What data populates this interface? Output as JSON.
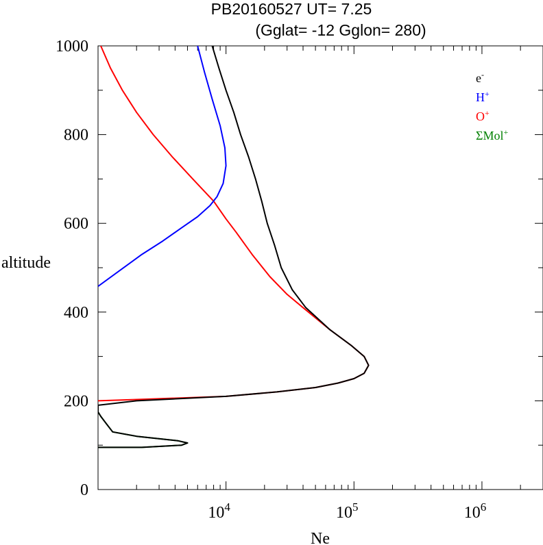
{
  "title": {
    "line1": "PB20160527   UT=  7.25",
    "line2": "(Gglat= -12   Gglon=  280)"
  },
  "chart_data": {
    "type": "line",
    "xlabel": "Ne",
    "ylabel": "altitude",
    "xscale": "log",
    "xlim": [
      1000,
      3000000
    ],
    "ylim": [
      0,
      1000
    ],
    "x_tick_labels": [
      {
        "base": "10",
        "exp": "4"
      },
      {
        "base": "10",
        "exp": "5"
      },
      {
        "base": "10",
        "exp": "6"
      }
    ],
    "y_tick_labels": [
      "0",
      "200",
      "400",
      "600",
      "800",
      "1000"
    ],
    "legend": {
      "placement": "top-right",
      "entries": [
        {
          "base": "e",
          "sup": "-",
          "color": "#000000"
        },
        {
          "base": "H",
          "sup": "+",
          "color": "#0000ff"
        },
        {
          "base": "O",
          "sup": "+",
          "color": "#ff0000"
        },
        {
          "base": "ΣMol",
          "sup": "+",
          "color": "#008000"
        }
      ]
    },
    "series": [
      {
        "name": "ΣMol+",
        "color": "#008000",
        "points": [
          [
            1000,
            95
          ],
          [
            2200,
            95
          ],
          [
            4500,
            100
          ],
          [
            5000,
            105
          ],
          [
            4200,
            110
          ],
          [
            2000,
            120
          ],
          [
            1300,
            130
          ],
          [
            1150,
            150
          ],
          [
            1050,
            165
          ],
          [
            1000,
            175
          ]
        ]
      },
      {
        "name": "O+",
        "color": "#ff0000",
        "points": [
          [
            1000,
            200
          ],
          [
            2000,
            203
          ],
          [
            10000,
            210
          ],
          [
            25000,
            220
          ],
          [
            50000,
            230
          ],
          [
            75000,
            240
          ],
          [
            100000,
            250
          ],
          [
            120000,
            262
          ],
          [
            130000,
            280
          ],
          [
            120000,
            300
          ],
          [
            95000,
            325
          ],
          [
            65000,
            360
          ],
          [
            40000,
            410
          ],
          [
            30000,
            440
          ],
          [
            22000,
            480
          ],
          [
            16000,
            530
          ],
          [
            12000,
            580
          ],
          [
            10000,
            610
          ],
          [
            8000,
            650
          ],
          [
            5500,
            700
          ],
          [
            3800,
            750
          ],
          [
            2700,
            800
          ],
          [
            2000,
            850
          ],
          [
            1550,
            900
          ],
          [
            1250,
            950
          ],
          [
            1050,
            1000
          ]
        ]
      },
      {
        "name": "H+",
        "color": "#0000ff",
        "points": [
          [
            1000,
            458
          ],
          [
            1500,
            495
          ],
          [
            2200,
            530
          ],
          [
            3200,
            560
          ],
          [
            4500,
            590
          ],
          [
            6000,
            615
          ],
          [
            7500,
            640
          ],
          [
            8500,
            660
          ],
          [
            9500,
            690
          ],
          [
            10000,
            730
          ],
          [
            9800,
            770
          ],
          [
            9000,
            820
          ],
          [
            7800,
            880
          ],
          [
            6800,
            940
          ],
          [
            6000,
            1000
          ]
        ]
      },
      {
        "name": "e-",
        "color": "#000000",
        "points": [
          [
            1000,
            95
          ],
          [
            2200,
            95
          ],
          [
            4500,
            100
          ],
          [
            5000,
            105
          ],
          [
            4200,
            110
          ],
          [
            2000,
            120
          ],
          [
            1300,
            130
          ],
          [
            1150,
            150
          ],
          [
            1050,
            165
          ],
          [
            1000,
            175
          ],
          [
            1000,
            190
          ],
          [
            2000,
            200
          ],
          [
            10000,
            210
          ],
          [
            25000,
            220
          ],
          [
            50000,
            230
          ],
          [
            75000,
            240
          ],
          [
            100000,
            250
          ],
          [
            120000,
            262
          ],
          [
            130000,
            280
          ],
          [
            120000,
            300
          ],
          [
            95000,
            325
          ],
          [
            65000,
            360
          ],
          [
            42000,
            410
          ],
          [
            33000,
            450
          ],
          [
            27000,
            500
          ],
          [
            24000,
            550
          ],
          [
            21000,
            600
          ],
          [
            19000,
            650
          ],
          [
            17000,
            700
          ],
          [
            15000,
            750
          ],
          [
            13000,
            800
          ],
          [
            11500,
            850
          ],
          [
            10000,
            900
          ],
          [
            8800,
            950
          ],
          [
            7800,
            1000
          ]
        ]
      }
    ]
  }
}
